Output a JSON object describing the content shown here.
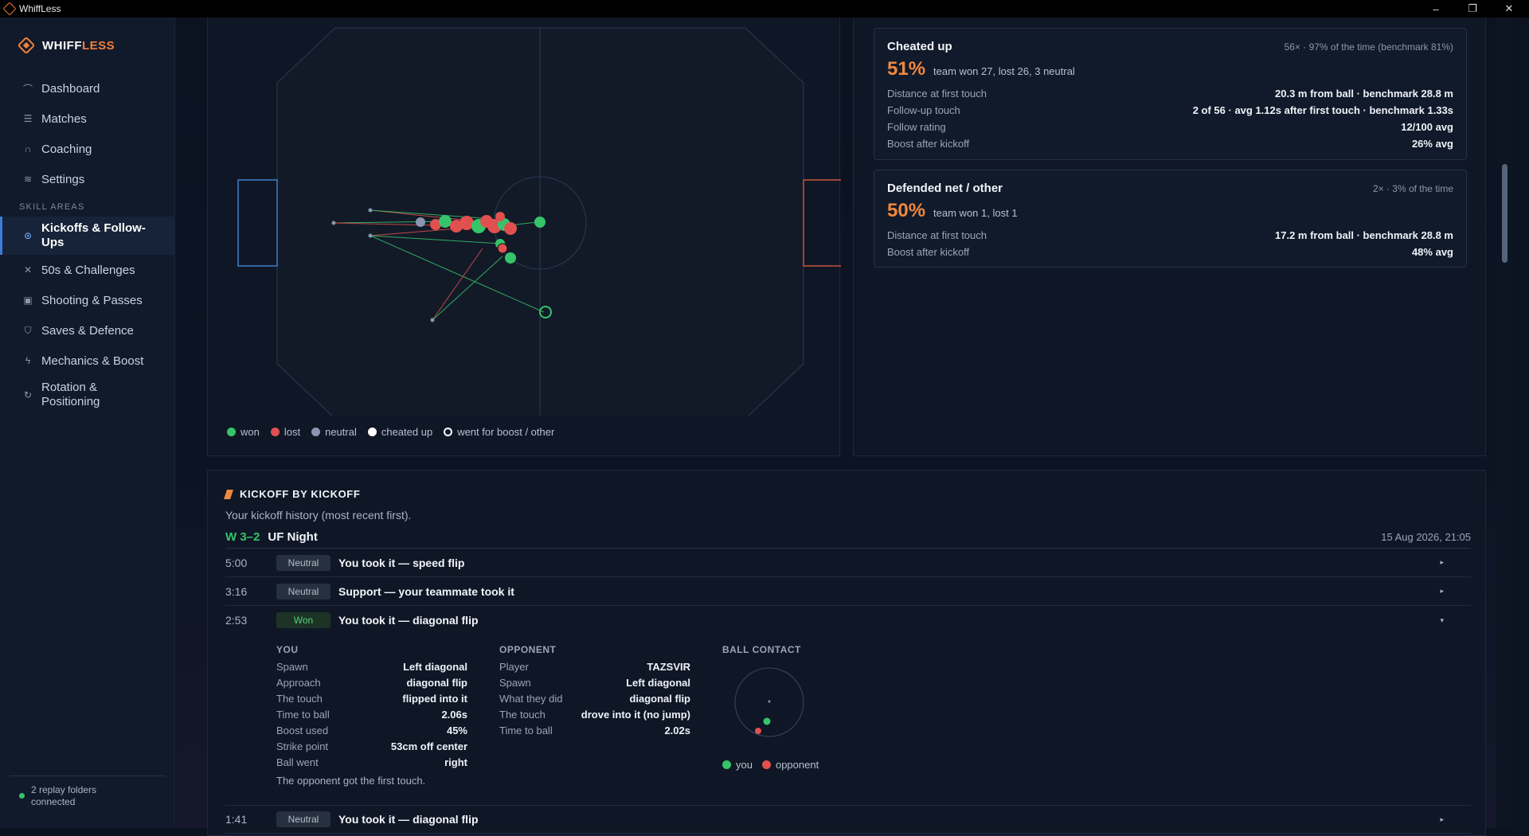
{
  "window": {
    "title": "WhiffLess",
    "minimize": "–",
    "restore": "❐",
    "close": "✕"
  },
  "brand": {
    "part1": "WHIFF",
    "part2": "LESS"
  },
  "sidebar": {
    "nav": [
      {
        "label": "Dashboard",
        "icon": "dashboard-icon",
        "glyph": "⌒"
      },
      {
        "label": "Matches",
        "icon": "list-icon",
        "glyph": "☰"
      },
      {
        "label": "Coaching",
        "icon": "headset-icon",
        "glyph": "∩"
      },
      {
        "label": "Settings",
        "icon": "sliders-icon",
        "glyph": "≋"
      }
    ],
    "section": "SKILL AREAS",
    "skills": [
      {
        "label": "Kickoffs & Follow-Ups",
        "icon": "target-icon",
        "glyph": "⊙",
        "active": true
      },
      {
        "label": "50s & Challenges",
        "icon": "cross-arrows-icon",
        "glyph": "✕"
      },
      {
        "label": "Shooting & Passes",
        "icon": "goal-icon",
        "glyph": "▣"
      },
      {
        "label": "Saves & Defence",
        "icon": "shield-icon",
        "glyph": "⛉"
      },
      {
        "label": "Mechanics & Boost",
        "icon": "bolt-icon",
        "glyph": "ϟ"
      },
      {
        "label": "Rotation & Positioning",
        "icon": "rotate-icon",
        "glyph": "↻"
      }
    ],
    "footer": "2 replay folders connected"
  },
  "legend": [
    {
      "label": "won",
      "color": "#36c46a",
      "ring": false
    },
    {
      "label": "lost",
      "color": "#e0504e",
      "ring": false
    },
    {
      "label": "neutral",
      "color": "#8a96b0",
      "ring": false
    },
    {
      "label": "cheated up",
      "color": "#ffffff",
      "ring": false
    },
    {
      "label": "went for boost / other",
      "color": "#ffffff",
      "ring": true
    }
  ],
  "cards": [
    {
      "title": "Cheated up",
      "meta": "56× · 97% of the time (benchmark 81%)",
      "pct": "51%",
      "sub": "team won 27, lost 26, 3 neutral",
      "rows": [
        {
          "label": "Distance at first touch",
          "value": "20.3 m from ball · benchmark 28.8 m"
        },
        {
          "label": "Follow-up touch",
          "value": "2 of 56 · avg 1.12s after first touch · benchmark 1.33s"
        },
        {
          "label": "Follow rating",
          "value": "12/100 avg"
        },
        {
          "label": "Boost after kickoff",
          "value": "26% avg"
        }
      ]
    },
    {
      "title": "Defended net / other",
      "meta": "2× · 3% of the time",
      "pct": "50%",
      "sub": "team won 1, lost 1",
      "rows": [
        {
          "label": "Distance at first touch",
          "value": "17.2 m from ball · benchmark 28.8 m"
        },
        {
          "label": "Boost after kickoff",
          "value": "48% avg"
        }
      ]
    }
  ],
  "history": {
    "title": "KICKOFF BY KICKOFF",
    "description": "Your kickoff history (most recent first).",
    "match": {
      "result": "W 3–2",
      "name": "UF Night",
      "date": "15 Aug 2026, 21:05"
    },
    "kickoffs": [
      {
        "time": "5:00",
        "badge": "Neutral",
        "won": false,
        "text": "You took it — speed flip",
        "chev": "▸"
      },
      {
        "time": "3:16",
        "badge": "Neutral",
        "won": false,
        "text": "Support — your teammate took it",
        "chev": "▸"
      },
      {
        "time": "2:53",
        "badge": "Won",
        "won": true,
        "text": "You took it — diagonal flip",
        "chev": "▾"
      },
      {
        "time": "1:41",
        "badge": "Neutral",
        "won": false,
        "text": "You took it — diagonal flip",
        "chev": "▸"
      }
    ],
    "detail": {
      "you": {
        "heading": "YOU",
        "rows": [
          {
            "label": "Spawn",
            "value": "Left diagonal"
          },
          {
            "label": "Approach",
            "value": "diagonal flip"
          },
          {
            "label": "The touch",
            "value": "flipped into it"
          },
          {
            "label": "Time to ball",
            "value": "2.06s"
          },
          {
            "label": "Boost used",
            "value": "45%"
          },
          {
            "label": "Strike point",
            "value": "53cm off center"
          },
          {
            "label": "Ball went",
            "value": "right"
          }
        ]
      },
      "opponent": {
        "heading": "OPPONENT",
        "rows": [
          {
            "label": "Player",
            "value": "TAZSVIR"
          },
          {
            "label": "Spawn",
            "value": "Left diagonal"
          },
          {
            "label": "What they did",
            "value": "diagonal flip"
          },
          {
            "label": "The touch",
            "value": "drove into it (no jump)"
          },
          {
            "label": "Time to ball",
            "value": "2.02s"
          }
        ]
      },
      "contact": {
        "heading": "BALL CONTACT",
        "legend": [
          {
            "label": "you",
            "color": "#36c46a"
          },
          {
            "label": "opponent",
            "color": "#e0504e"
          }
        ]
      },
      "note": "The opponent got the first touch."
    }
  },
  "colors": {
    "accent": "#f0883e",
    "won": "#36c46a",
    "lost": "#e0504e",
    "neutral": "#8a96b0",
    "blue_goal": "#3d7ecb",
    "orange_goal": "#c5543c"
  }
}
